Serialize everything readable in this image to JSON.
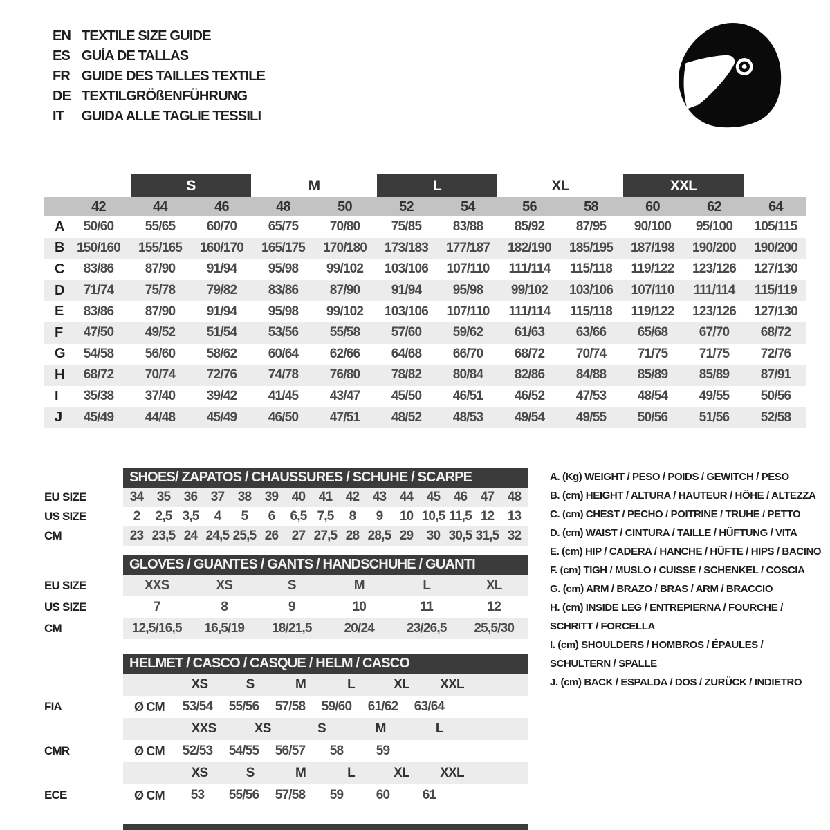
{
  "colors": {
    "dark_bar": "#3b3b3b",
    "number_bar": "#c3c3c3",
    "stripe": "#ececec"
  },
  "header": {
    "languages": [
      {
        "code": "EN",
        "title": "TEXTILE SIZE GUIDE"
      },
      {
        "code": "ES",
        "title": "GUÍA DE TALLAS"
      },
      {
        "code": "FR",
        "title": "GUIDE DES TAILLES TEXTILE"
      },
      {
        "code": "DE",
        "title": "TEXTILGRÖßENFÜHRUNG"
      },
      {
        "code": "IT",
        "title": "GUIDA ALLE TAGLIE TESSILI"
      }
    ],
    "logo_icon": "racing-helmet-icon"
  },
  "main_table": {
    "letter_sizes": [
      {
        "label": "S",
        "span": [
          "44",
          "46"
        ],
        "dark": true
      },
      {
        "label": "M",
        "span": [
          "48",
          "50"
        ],
        "dark": false
      },
      {
        "label": "L",
        "span": [
          "52",
          "54"
        ],
        "dark": true
      },
      {
        "label": "XL",
        "span": [
          "56",
          "58"
        ],
        "dark": false
      },
      {
        "label": "XXL",
        "span": [
          "60",
          "62"
        ],
        "dark": true
      }
    ],
    "numeric_sizes": [
      "42",
      "44",
      "46",
      "48",
      "50",
      "52",
      "54",
      "56",
      "58",
      "60",
      "62",
      "64"
    ],
    "rows": [
      {
        "key": "A",
        "values": [
          "50/60",
          "55/65",
          "60/70",
          "65/75",
          "70/80",
          "75/85",
          "83/88",
          "85/92",
          "87/95",
          "90/100",
          "95/100",
          "105/115"
        ]
      },
      {
        "key": "B",
        "values": [
          "150/160",
          "155/165",
          "160/170",
          "165/175",
          "170/180",
          "173/183",
          "177/187",
          "182/190",
          "185/195",
          "187/198",
          "190/200",
          "190/200"
        ]
      },
      {
        "key": "C",
        "values": [
          "83/86",
          "87/90",
          "91/94",
          "95/98",
          "99/102",
          "103/106",
          "107/110",
          "111/114",
          "115/118",
          "119/122",
          "123/126",
          "127/130"
        ]
      },
      {
        "key": "D",
        "values": [
          "71/74",
          "75/78",
          "79/82",
          "83/86",
          "87/90",
          "91/94",
          "95/98",
          "99/102",
          "103/106",
          "107/110",
          "111/114",
          "115/119"
        ]
      },
      {
        "key": "E",
        "values": [
          "83/86",
          "87/90",
          "91/94",
          "95/98",
          "99/102",
          "103/106",
          "107/110",
          "111/114",
          "115/118",
          "119/122",
          "123/126",
          "127/130"
        ]
      },
      {
        "key": "F",
        "values": [
          "47/50",
          "49/52",
          "51/54",
          "53/56",
          "55/58",
          "57/60",
          "59/62",
          "61/63",
          "63/66",
          "65/68",
          "67/70",
          "68/72"
        ]
      },
      {
        "key": "G",
        "values": [
          "54/58",
          "56/60",
          "58/62",
          "60/64",
          "62/66",
          "64/68",
          "66/70",
          "68/72",
          "70/74",
          "71/75",
          "71/75",
          "72/76"
        ]
      },
      {
        "key": "H",
        "values": [
          "68/72",
          "70/74",
          "72/76",
          "74/78",
          "76/80",
          "78/82",
          "80/84",
          "82/86",
          "84/88",
          "85/89",
          "85/89",
          "87/91"
        ]
      },
      {
        "key": "I",
        "values": [
          "35/38",
          "37/40",
          "39/42",
          "41/45",
          "43/47",
          "45/50",
          "46/51",
          "46/52",
          "47/53",
          "48/54",
          "49/55",
          "50/56"
        ]
      },
      {
        "key": "J",
        "values": [
          "45/49",
          "44/48",
          "45/49",
          "46/50",
          "47/51",
          "48/52",
          "48/53",
          "49/54",
          "49/55",
          "50/56",
          "51/56",
          "52/58"
        ]
      }
    ]
  },
  "shoes": {
    "title": "SHOES/ ZAPATOS / CHAUSSURES / SCHUHE / SCARPE",
    "rows": [
      {
        "label": "EU SIZE",
        "gray": true,
        "values": [
          "34",
          "35",
          "36",
          "37",
          "38",
          "39",
          "40",
          "41",
          "42",
          "43",
          "44",
          "45",
          "46",
          "47",
          "48"
        ]
      },
      {
        "label": "US SIZE",
        "gray": false,
        "values": [
          "2",
          "2,5",
          "3,5",
          "4",
          "5",
          "6",
          "6,5",
          "7,5",
          "8",
          "9",
          "10",
          "10,5",
          "11,5",
          "12",
          "13"
        ]
      },
      {
        "label": "CM",
        "gray": true,
        "values": [
          "23",
          "23,5",
          "24",
          "24,5",
          "25,5",
          "26",
          "27",
          "27,5",
          "28",
          "28,5",
          "29",
          "30",
          "30,5",
          "31,5",
          "32"
        ]
      }
    ]
  },
  "gloves": {
    "title": "GLOVES / GUANTES / GANTS / HANDSCHUHE / GUANTI",
    "rows": [
      {
        "label": "EU SIZE",
        "gray": true,
        "values": [
          "XXS",
          "XS",
          "S",
          "M",
          "L",
          "XL"
        ]
      },
      {
        "label": "US SIZE",
        "gray": false,
        "values": [
          "7",
          "8",
          "9",
          "10",
          "11",
          "12"
        ]
      },
      {
        "label": "CM",
        "gray": true,
        "values": [
          "12,5/16,5",
          "16,5/19",
          "18/21,5",
          "20/24",
          "23/26,5",
          "25,5/30"
        ]
      }
    ]
  },
  "helmet": {
    "title": "HELMET / CASCO / CASQUE / HELM / CASCO",
    "standards": [
      {
        "name": "FIA",
        "unit": "Ø CM",
        "sizes": [
          "XS",
          "S",
          "M",
          "L",
          "XL",
          "XXL"
        ],
        "values": [
          "53/54",
          "55/56",
          "57/58",
          "59/60",
          "61/62",
          "63/64"
        ]
      },
      {
        "name": "CMR",
        "unit": "Ø CM",
        "sizes": [
          "XXS",
          "XS",
          "S",
          "M",
          "L"
        ],
        "values": [
          "52/53",
          "54/55",
          "56/57",
          "58",
          "59"
        ]
      },
      {
        "name": "ECE",
        "unit": "Ø CM",
        "sizes": [
          "XS",
          "S",
          "M",
          "L",
          "XL",
          "XXL"
        ],
        "values": [
          "53",
          "55/56",
          "57/58",
          "59",
          "60",
          "61"
        ]
      }
    ]
  },
  "legend": {
    "items": [
      {
        "lines": [
          "A. (Kg) WEIGHT / PESO / POIDS / GEWITCH / PESO"
        ]
      },
      {
        "lines": [
          "B. (cm) HEIGHT / ALTURA / HAUTEUR / HÖHE / ALTEZZA"
        ]
      },
      {
        "lines": [
          "C. (cm) CHEST / PECHO / POITRINE / TRUHE / PETTO"
        ]
      },
      {
        "lines": [
          "D. (cm) WAIST / CINTURA / TAILLE / HÜFTUNG / VITA"
        ]
      },
      {
        "lines": [
          "E. (cm) HIP / CADERA / HANCHE / HÜFTE / HIPS / BACINO"
        ]
      },
      {
        "lines": [
          "F. (cm) TIGH / MUSLO / CUISSE / SCHENKEL / COSCIA"
        ]
      },
      {
        "lines": [
          "G. (cm) ARM / BRAZO / BRAS / ARM / BRACCIO"
        ]
      },
      {
        "lines": [
          "H. (cm) INSIDE LEG / ENTREPIERNA / FOURCHE /",
          "SCHRITT / FORCELLA"
        ]
      },
      {
        "lines": [
          "I. (cm) SHOULDERS / HOMBROS / ÉPAULES /",
          "SCHULTERN / SPALLE"
        ]
      },
      {
        "lines": [
          "J. (cm) BACK / ESPALDA / DOS / ZURÜCK / INDIETRO"
        ]
      }
    ]
  }
}
